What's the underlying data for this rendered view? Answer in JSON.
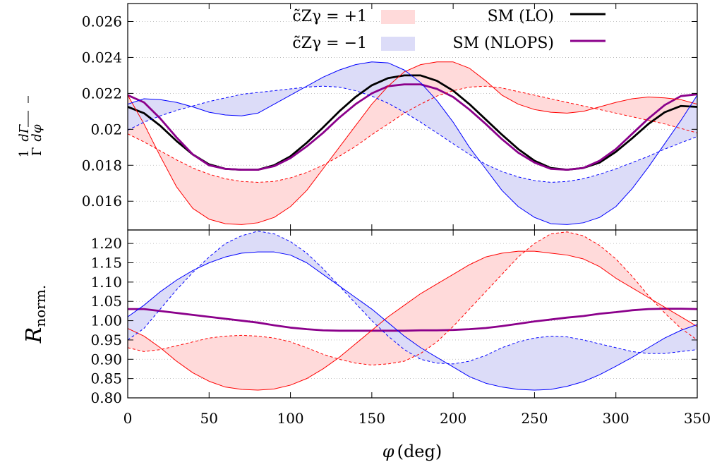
{
  "chart_data": [
    {
      "type": "area",
      "panel": "top",
      "ylabel": "1/Γ dΓ/dφ",
      "xlim": [
        0,
        350
      ],
      "ylim": [
        0.0144,
        0.027
      ],
      "yticks": [
        0.016,
        0.018,
        0.02,
        0.022,
        0.024,
        0.026
      ],
      "ytick_labels": [
        "0.016",
        "0.018",
        "0.02",
        "0.022",
        "0.024",
        "0.026"
      ],
      "grid": true,
      "legend_position": "top",
      "legend": [
        {
          "label": "c̃Zγ = +1",
          "kind": "band",
          "color": "#ffdada"
        },
        {
          "label": "c̃Zγ = −1",
          "kind": "band",
          "color": "#dcdcf8"
        },
        {
          "label": "SM (LO)",
          "kind": "line",
          "color": "#000000"
        },
        {
          "label": "SM (NLOPS)",
          "kind": "line",
          "color": "#8b008b"
        }
      ],
      "x": [
        0,
        10,
        20,
        30,
        40,
        50,
        60,
        70,
        80,
        90,
        100,
        110,
        120,
        130,
        140,
        150,
        160,
        170,
        180,
        190,
        200,
        210,
        220,
        230,
        240,
        250,
        260,
        270,
        280,
        290,
        300,
        310,
        320,
        330,
        340,
        350
      ],
      "series": [
        {
          "name": "SM (LO)",
          "color": "#000000",
          "style": "solid",
          "width": 2.8,
          "values": [
            0.02125,
            0.0209,
            0.0202,
            0.01935,
            0.0186,
            0.01805,
            0.0178,
            0.01775,
            0.01775,
            0.018,
            0.0185,
            0.01925,
            0.0201,
            0.021,
            0.0218,
            0.02245,
            0.02285,
            0.023,
            0.023,
            0.0227,
            0.02215,
            0.0214,
            0.02055,
            0.0197,
            0.0189,
            0.01825,
            0.01785,
            0.01775,
            0.01785,
            0.01815,
            0.01875,
            0.0195,
            0.0203,
            0.02095,
            0.0213,
            0.02125
          ]
        },
        {
          "name": "SM (NLOPS)",
          "color": "#8b008b",
          "style": "solid",
          "width": 2.8,
          "values": [
            0.0219,
            0.0215,
            0.0206,
            0.01955,
            0.0186,
            0.018,
            0.0178,
            0.01775,
            0.01775,
            0.01795,
            0.0184,
            0.01905,
            0.0198,
            0.02065,
            0.0214,
            0.022,
            0.0224,
            0.0225,
            0.0225,
            0.02225,
            0.0218,
            0.0211,
            0.0203,
            0.01945,
            0.0187,
            0.01815,
            0.0178,
            0.01775,
            0.01785,
            0.01825,
            0.0189,
            0.01975,
            0.0206,
            0.02135,
            0.02185,
            0.02195
          ]
        },
        {
          "name": "",
          "color": "#ff0000",
          "style": "solid",
          "width": 1,
          "values": [
            0.0219,
            0.0203,
            0.0185,
            0.0168,
            0.0156,
            0.015,
            0.01475,
            0.0147,
            0.0148,
            0.0151,
            0.0157,
            0.0166,
            0.0178,
            0.019,
            0.0202,
            0.0214,
            0.0224,
            0.0232,
            0.0236,
            0.02375,
            0.02375,
            0.0234,
            0.0227,
            0.0219,
            0.0214,
            0.0211,
            0.02095,
            0.0209,
            0.021,
            0.02125,
            0.0215,
            0.0217,
            0.0218,
            0.02175,
            0.02165,
            0.0214
          ]
        },
        {
          "name": "",
          "color": "#ff0000",
          "style": "dashed",
          "width": 1,
          "values": [
            0.01975,
            0.0193,
            0.0188,
            0.0183,
            0.01785,
            0.0175,
            0.01725,
            0.0171,
            0.01705,
            0.0171,
            0.0173,
            0.0176,
            0.018,
            0.0185,
            0.01905,
            0.0197,
            0.0203,
            0.0209,
            0.0214,
            0.02185,
            0.02215,
            0.02235,
            0.0224,
            0.0223,
            0.0221,
            0.0219,
            0.0217,
            0.0215,
            0.0213,
            0.0211,
            0.0209,
            0.0207,
            0.0205,
            0.0203,
            0.02005,
            0.0198
          ]
        },
        {
          "name": "",
          "color": "#0000ff",
          "style": "solid",
          "width": 1,
          "values": [
            0.0214,
            0.0217,
            0.02165,
            0.0215,
            0.02125,
            0.02095,
            0.0208,
            0.02075,
            0.0209,
            0.0214,
            0.0219,
            0.0224,
            0.0229,
            0.0233,
            0.0236,
            0.02375,
            0.0237,
            0.0233,
            0.0226,
            0.0216,
            0.0204,
            0.019,
            0.0178,
            0.0166,
            0.0157,
            0.0151,
            0.01475,
            0.0147,
            0.0148,
            0.0151,
            0.0157,
            0.0167,
            0.0179,
            0.0192,
            0.0205,
            0.0219
          ]
        },
        {
          "name": "",
          "color": "#0000ff",
          "style": "dashed",
          "width": 1,
          "values": [
            0.01995,
            0.0204,
            0.02075,
            0.02105,
            0.0213,
            0.02155,
            0.02175,
            0.02195,
            0.02205,
            0.02215,
            0.02225,
            0.02235,
            0.0224,
            0.02235,
            0.02215,
            0.02185,
            0.02145,
            0.02095,
            0.0204,
            0.0198,
            0.0192,
            0.0186,
            0.01805,
            0.01765,
            0.01735,
            0.01715,
            0.01705,
            0.0171,
            0.01725,
            0.0175,
            0.0178,
            0.01815,
            0.0185,
            0.0189,
            0.01925,
            0.0196
          ]
        }
      ],
      "bands": [
        {
          "color": "#ffdada",
          "between": [
            2,
            3
          ]
        },
        {
          "color": "#dcdcf8",
          "between": [
            4,
            5
          ]
        }
      ]
    },
    {
      "type": "area",
      "panel": "bottom",
      "title": "",
      "xlabel": "φ (deg)",
      "ylabel": "R norm.",
      "xlim": [
        0,
        350
      ],
      "ylim": [
        0.8,
        1.235
      ],
      "xticks": [
        0,
        50,
        100,
        150,
        200,
        250,
        300,
        350
      ],
      "xtick_labels": [
        "0",
        "50",
        "100",
        "150",
        "200",
        "250",
        "300",
        "350"
      ],
      "yticks": [
        0.8,
        0.85,
        0.9,
        0.95,
        1.0,
        1.05,
        1.1,
        1.15,
        1.2
      ],
      "ytick_labels": [
        "0.80",
        "0.85",
        "0.90",
        "0.95",
        "1.00",
        "1.05",
        "1.10",
        "1.15",
        "1.20"
      ],
      "grid": true,
      "x": [
        0,
        10,
        20,
        30,
        40,
        50,
        60,
        70,
        80,
        90,
        100,
        110,
        120,
        130,
        140,
        150,
        160,
        170,
        180,
        190,
        200,
        210,
        220,
        230,
        240,
        250,
        260,
        270,
        280,
        290,
        300,
        310,
        320,
        330,
        340,
        350
      ],
      "series": [
        {
          "name": "SM (NLOPS)",
          "color": "#8b008b",
          "style": "solid",
          "width": 2.8,
          "values": [
            1.03,
            1.03,
            1.025,
            1.02,
            1.015,
            1.01,
            1.005,
            1.0,
            0.995,
            0.988,
            0.982,
            0.978,
            0.975,
            0.974,
            0.974,
            0.974,
            0.974,
            0.974,
            0.975,
            0.975,
            0.976,
            0.978,
            0.981,
            0.986,
            0.992,
            0.998,
            1.003,
            1.008,
            1.012,
            1.018,
            1.022,
            1.027,
            1.03,
            1.031,
            1.031,
            1.03
          ]
        },
        {
          "name": "",
          "color": "#ff0000",
          "style": "solid",
          "width": 1,
          "values": [
            0.98,
            0.96,
            0.93,
            0.895,
            0.865,
            0.843,
            0.828,
            0.822,
            0.82,
            0.823,
            0.833,
            0.85,
            0.875,
            0.905,
            0.94,
            0.975,
            1.01,
            1.04,
            1.07,
            1.095,
            1.12,
            1.145,
            1.165,
            1.175,
            1.18,
            1.18,
            1.175,
            1.17,
            1.16,
            1.14,
            1.11,
            1.085,
            1.06,
            1.035,
            1.01,
            0.985
          ]
        },
        {
          "name": "",
          "color": "#ff0000",
          "style": "dashed",
          "width": 1,
          "values": [
            0.93,
            0.92,
            0.925,
            0.935,
            0.945,
            0.955,
            0.96,
            0.962,
            0.96,
            0.955,
            0.945,
            0.93,
            0.913,
            0.9,
            0.89,
            0.885,
            0.888,
            0.895,
            0.915,
            0.945,
            0.985,
            1.03,
            1.075,
            1.12,
            1.165,
            1.2,
            1.225,
            1.23,
            1.22,
            1.195,
            1.16,
            1.115,
            1.065,
            1.02,
            0.98,
            0.95
          ]
        },
        {
          "name": "",
          "color": "#0000ff",
          "style": "solid",
          "width": 1,
          "values": [
            1.01,
            1.04,
            1.075,
            1.105,
            1.13,
            1.15,
            1.165,
            1.175,
            1.178,
            1.178,
            1.17,
            1.15,
            1.12,
            1.09,
            1.06,
            1.03,
            0.995,
            0.96,
            0.93,
            0.905,
            0.88,
            0.855,
            0.838,
            0.828,
            0.822,
            0.82,
            0.822,
            0.83,
            0.842,
            0.86,
            0.882,
            0.905,
            0.93,
            0.955,
            0.975,
            0.99
          ]
        },
        {
          "name": "",
          "color": "#0000ff",
          "style": "dashed",
          "width": 1,
          "values": [
            0.95,
            0.98,
            1.03,
            1.08,
            1.125,
            1.165,
            1.2,
            1.22,
            1.232,
            1.225,
            1.205,
            1.175,
            1.135,
            1.09,
            1.045,
            1.0,
            0.96,
            0.925,
            0.9,
            0.89,
            0.888,
            0.895,
            0.91,
            0.93,
            0.945,
            0.955,
            0.96,
            0.958,
            0.95,
            0.94,
            0.93,
            0.92,
            0.915,
            0.915,
            0.92,
            0.925
          ]
        }
      ],
      "bands": [
        {
          "color": "#ffdada",
          "between": [
            1,
            2
          ]
        },
        {
          "color": "#dcdcf8",
          "between": [
            3,
            4
          ]
        }
      ]
    }
  ]
}
